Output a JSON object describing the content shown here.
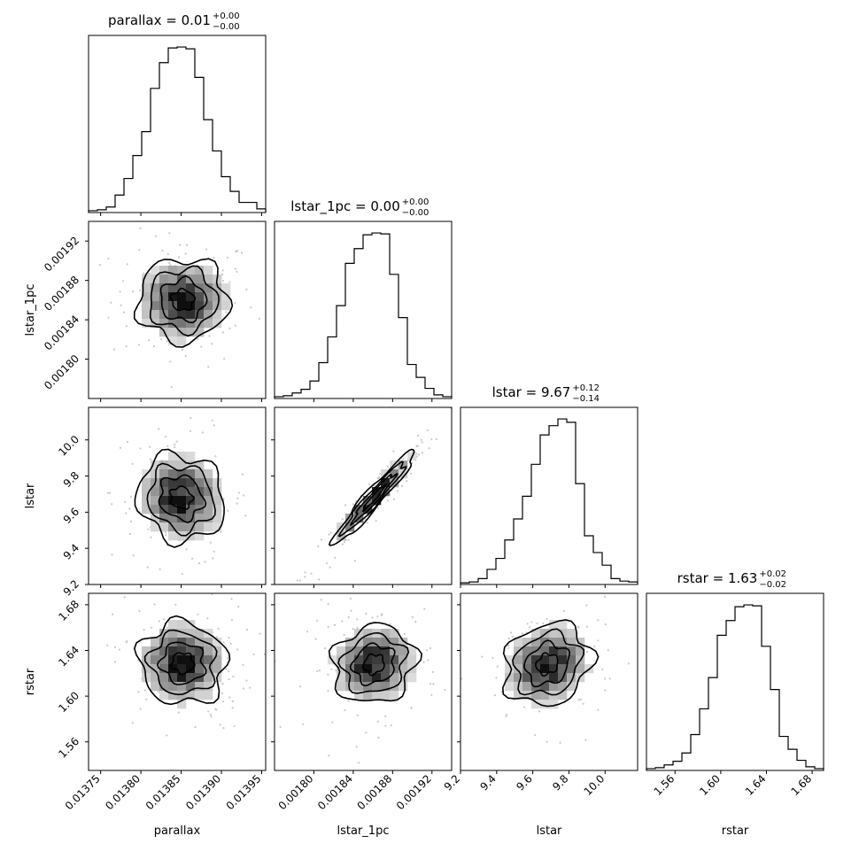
{
  "chart_data": {
    "type": "corner",
    "parameters": [
      "parallax",
      "lstar_1pc",
      "lstar",
      "rstar"
    ],
    "titles": [
      {
        "name": "parallax",
        "median": "0.01",
        "plus": "+0.00",
        "minus": "−0.00"
      },
      {
        "name": "lstar_1pc",
        "median": "0.00",
        "plus": "+0.00",
        "minus": "−0.00"
      },
      {
        "name": "lstar",
        "median": "9.67",
        "plus": "+0.12",
        "minus": "−0.14"
      },
      {
        "name": "rstar",
        "median": "1.63",
        "plus": "+0.02",
        "minus": "−0.02"
      }
    ],
    "axes": {
      "parallax": {
        "range": [
          0.013735,
          0.013955
        ],
        "ticks": [
          0.01375,
          0.0138,
          0.01385,
          0.0139,
          0.01395
        ],
        "tick_labels": [
          "0.01375",
          "0.01380",
          "0.01385",
          "0.01390",
          "0.01395"
        ]
      },
      "lstar_1pc": {
        "range": [
          0.00176,
          0.00194
        ],
        "ticks": [
          0.0018,
          0.00184,
          0.00188,
          0.00192
        ],
        "tick_labels": [
          "0.00180",
          "0.00184",
          "0.00188",
          "0.00192"
        ]
      },
      "lstar": {
        "range": [
          9.2,
          10.18
        ],
        "ticks": [
          9.2,
          9.4,
          9.6,
          9.8,
          10.0
        ],
        "tick_labels": [
          "9.2",
          "9.4",
          "9.6",
          "9.8",
          "10.0"
        ]
      },
      "rstar": {
        "range": [
          1.535,
          1.69
        ],
        "ticks": [
          1.56,
          1.6,
          1.64,
          1.68
        ],
        "tick_labels": [
          "1.56",
          "1.60",
          "1.64",
          "1.68"
        ]
      }
    },
    "histograms": {
      "parallax": {
        "start": 0.013735,
        "width": 1.1e-05,
        "counts": [
          2,
          3,
          6,
          19,
          37,
          62,
          88,
          135,
          163,
          179,
          180,
          178,
          147,
          101,
          67,
          39,
          23,
          11,
          11,
          4
        ]
      },
      "lstar_1pc": {
        "start": 0.00176,
        "width": 9e-06,
        "counts": [
          2,
          3,
          6,
          10,
          19,
          39,
          67,
          101,
          147,
          163,
          178,
          180,
          179,
          135,
          88,
          37,
          23,
          11,
          4,
          2
        ]
      },
      "lstar": {
        "start": 9.2,
        "width": 0.049,
        "counts": [
          2,
          3,
          7,
          18,
          31,
          53,
          78,
          105,
          143,
          178,
          189,
          197,
          193,
          120,
          58,
          38,
          23,
          7,
          4,
          3
        ]
      },
      "rstar": {
        "start": 1.535,
        "width": 0.00775,
        "counts": [
          2,
          3,
          6,
          10,
          19,
          39,
          67,
          101,
          147,
          163,
          178,
          180,
          179,
          135,
          88,
          37,
          23,
          11,
          4,
          2
        ]
      }
    },
    "joint": [
      {
        "x": "parallax",
        "y": "lstar_1pc",
        "center": [
          0.013852,
          0.00186
        ],
        "sigma": [
          2.8e-05,
          2.1e-05
        ],
        "rho": 0.0
      },
      {
        "x": "parallax",
        "y": "lstar",
        "center": [
          0.01385,
          9.68
        ],
        "sigma": [
          2.7e-05,
          0.12
        ],
        "rho": -0.1
      },
      {
        "x": "lstar_1pc",
        "y": "lstar",
        "center": [
          0.001861,
          9.68
        ],
        "sigma": [
          2.1e-05,
          0.13
        ],
        "rho": 0.96
      },
      {
        "x": "parallax",
        "y": "rstar",
        "center": [
          0.013852,
          1.629
        ],
        "sigma": [
          2.7e-05,
          0.018
        ],
        "rho": -0.05
      },
      {
        "x": "lstar_1pc",
        "y": "rstar",
        "center": [
          0.001861,
          1.628
        ],
        "sigma": [
          2.1e-05,
          0.017
        ],
        "rho": 0.1
      },
      {
        "x": "lstar",
        "y": "rstar",
        "center": [
          9.68,
          1.628
        ],
        "sigma": [
          0.12,
          0.018
        ],
        "rho": 0.15
      }
    ],
    "levels_sigma": [
      0.5,
      1.0,
      1.5,
      2.0
    ]
  }
}
